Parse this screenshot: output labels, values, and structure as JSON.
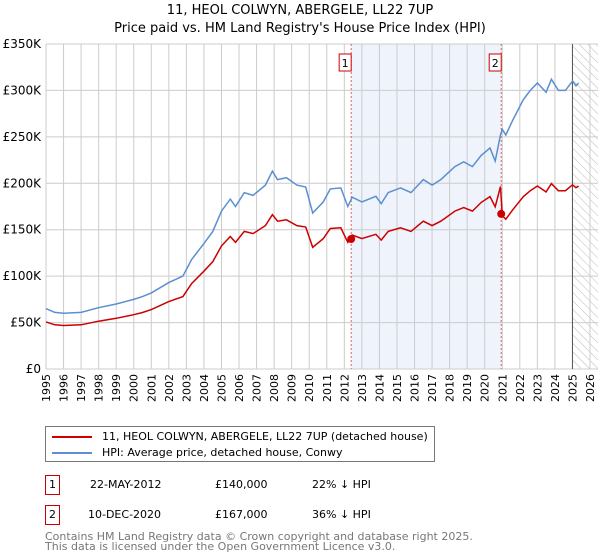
{
  "title": "11, HEOL COLWYN, ABERGELE, LL22 7UP",
  "subtitle": "Price paid vs. HM Land Registry's House Price Index (HPI)",
  "colors": {
    "property": "#cc0000",
    "hpi": "#5b8fd0",
    "shade": "#eef3fc",
    "event": "#e06060"
  },
  "chart_data": {
    "type": "line",
    "title": "11, HEOL COLWYN, ABERGELE, LL22 7UP",
    "xlim": [
      1995,
      2026
    ],
    "ylim": [
      0,
      350000
    ],
    "grid": true,
    "x_ticks": [
      "1995",
      "1996",
      "1997",
      "1998",
      "1999",
      "2000",
      "2001",
      "2002",
      "2003",
      "2004",
      "2005",
      "2006",
      "2007",
      "2008",
      "2009",
      "2010",
      "2011",
      "2012",
      "2013",
      "2014",
      "2015",
      "2016",
      "2017",
      "2018",
      "2019",
      "2020",
      "2021",
      "2022",
      "2023",
      "2024",
      "2025",
      "2026"
    ],
    "y_ticks": [
      {
        "v": 0,
        "label": "£0"
      },
      {
        "v": 50000,
        "label": "£50K"
      },
      {
        "v": 100000,
        "label": "£100K"
      },
      {
        "v": 150000,
        "label": "£150K"
      },
      {
        "v": 200000,
        "label": "£200K"
      },
      {
        "v": 250000,
        "label": "£250K"
      },
      {
        "v": 300000,
        "label": "£300K"
      },
      {
        "v": 350000,
        "label": "£350K"
      }
    ],
    "hpi_series": {
      "name": "HPI: Average price, detached house, Conwy",
      "x": [
        1995.0,
        1995.5,
        1996,
        1997,
        1998,
        1999,
        2000,
        2000.5,
        2001,
        2002,
        2002.8,
        2003.3,
        2004,
        2004.5,
        2005,
        2005.5,
        2005.8,
        2006.3,
        2006.8,
        2007.5,
        2007.9,
        2008.2,
        2008.7,
        2009.3,
        2009.8,
        2010.2,
        2010.8,
        2011.2,
        2011.8,
        2012.2,
        2012.45,
        2013,
        2013.8,
        2014.1,
        2014.5,
        2015.2,
        2015.8,
        2016.5,
        2017,
        2017.5,
        2018.3,
        2018.8,
        2019.3,
        2019.8,
        2020.3,
        2020.6,
        2020.9,
        2021.0,
        2021.2,
        2021.6,
        2022.2,
        2022.6,
        2023.0,
        2023.5,
        2023.8,
        2024.2,
        2024.6,
        2025.0,
        2025.2,
        2025.35
      ],
      "y": [
        65000,
        61000,
        60000,
        61000,
        66000,
        70000,
        75000,
        78000,
        82000,
        93000,
        100000,
        118000,
        135000,
        148000,
        170000,
        183000,
        175000,
        190000,
        187000,
        198000,
        213000,
        204000,
        206000,
        198000,
        196000,
        168000,
        180000,
        194000,
        195000,
        175000,
        185000,
        180000,
        186000,
        178000,
        190000,
        195000,
        190000,
        204000,
        198000,
        204000,
        218000,
        223000,
        218000,
        230000,
        238000,
        224000,
        252000,
        258000,
        252000,
        268000,
        290000,
        300000,
        308000,
        298000,
        312000,
        300000,
        300000,
        310000,
        305000,
        308000
      ]
    },
    "property_series": {
      "name": "11, HEOL COLWYN, ABERGELE, LL22 7UP (detached house)",
      "ratio_before_sale2": 0.78,
      "ratio_after_sale2": 0.64
    },
    "events": [
      {
        "id": "1",
        "x": 2012.39,
        "value": 140000
      },
      {
        "id": "2",
        "x": 2020.94,
        "value": 167000
      }
    ],
    "shaded_range": [
      2012.39,
      2020.94
    ],
    "hatched_from": 2025.0
  },
  "legend": {
    "property": "11, HEOL COLWYN, ABERGELE, LL22 7UP (detached house)",
    "hpi": "HPI: Average price, detached house, Conwy"
  },
  "transactions": [
    {
      "id": "1",
      "date": "22-MAY-2012",
      "price": "£140,000",
      "diff": "22% ↓ HPI"
    },
    {
      "id": "2",
      "date": "10-DEC-2020",
      "price": "£167,000",
      "diff": "36% ↓ HPI"
    }
  ],
  "footer": {
    "line1": "Contains HM Land Registry data © Crown copyright and database right 2025.",
    "line2": "This data is licensed under the Open Government Licence v3.0."
  }
}
